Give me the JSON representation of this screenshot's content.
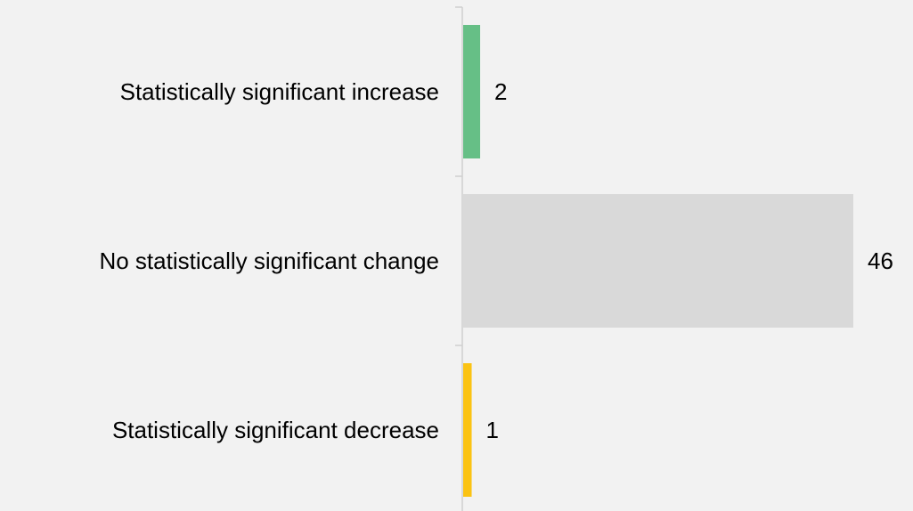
{
  "chart_data": {
    "type": "bar",
    "orientation": "horizontal",
    "title": "",
    "xlabel": "",
    "ylabel": "",
    "categories": [
      "Statistically significant increase",
      "No statistically significant change",
      "Statistically significant decrease"
    ],
    "values": [
      2,
      46,
      1
    ],
    "data_labels": [
      "2",
      "46",
      "1"
    ],
    "colors": [
      "#66bf86",
      "#d9d9d9",
      "#fbc313"
    ],
    "xlim": [
      0,
      46
    ],
    "grid": false,
    "legend": "none"
  },
  "colors": {
    "background": "#f2f2f2",
    "axis": "#d0d0d0",
    "text": "#000000"
  }
}
